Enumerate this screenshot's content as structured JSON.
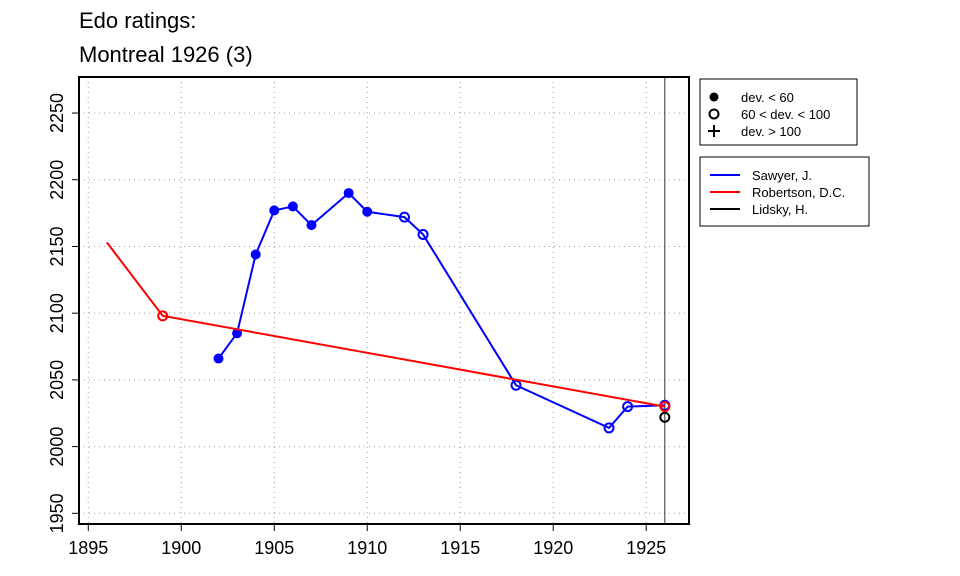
{
  "chart_data": {
    "type": "line",
    "title": "Edo ratings:",
    "subtitle": "Montreal 1926 (3)",
    "xlim": [
      1894.5,
      1927.3
    ],
    "ylim": [
      1942,
      2277
    ],
    "x_ticks": [
      1895,
      1900,
      1905,
      1910,
      1915,
      1920,
      1925
    ],
    "y_ticks": [
      1950,
      2000,
      2050,
      2100,
      2150,
      2200,
      2250
    ],
    "grid": true,
    "event_year": 1926,
    "marker_legend": [
      {
        "symbol": "filled-circle",
        "label": "dev. < 60"
      },
      {
        "symbol": "open-circle",
        "label": "60 < dev. < 100"
      },
      {
        "symbol": "plus",
        "label": "dev. > 100"
      }
    ],
    "series": [
      {
        "name": "Sawyer, J.",
        "color": "#0000ff",
        "points": [
          {
            "x": 1902,
            "y": 2066,
            "marker": "filled"
          },
          {
            "x": 1903,
            "y": 2085,
            "marker": "filled"
          },
          {
            "x": 1904,
            "y": 2144,
            "marker": "filled"
          },
          {
            "x": 1905,
            "y": 2177,
            "marker": "filled"
          },
          {
            "x": 1906,
            "y": 2180,
            "marker": "filled"
          },
          {
            "x": 1907,
            "y": 2166,
            "marker": "filled"
          },
          {
            "x": 1909,
            "y": 2190,
            "marker": "filled"
          },
          {
            "x": 1910,
            "y": 2176,
            "marker": "filled"
          },
          {
            "x": 1912,
            "y": 2172,
            "marker": "open"
          },
          {
            "x": 1913,
            "y": 2159,
            "marker": "open"
          },
          {
            "x": 1918,
            "y": 2046,
            "marker": "open"
          },
          {
            "x": 1923,
            "y": 2014,
            "marker": "open"
          },
          {
            "x": 1924,
            "y": 2030,
            "marker": "open"
          },
          {
            "x": 1926,
            "y": 2031,
            "marker": "open"
          }
        ]
      },
      {
        "name": "Robertson, D.C.",
        "color": "#ff0000",
        "points": [
          {
            "x": 1896,
            "y": 2153,
            "marker": "none"
          },
          {
            "x": 1899,
            "y": 2098,
            "marker": "open"
          },
          {
            "x": 1926,
            "y": 2030,
            "marker": "open"
          }
        ]
      },
      {
        "name": "Lidsky, H.",
        "color": "#000000",
        "points": [
          {
            "x": 1926,
            "y": 2022,
            "marker": "open"
          }
        ]
      }
    ]
  }
}
